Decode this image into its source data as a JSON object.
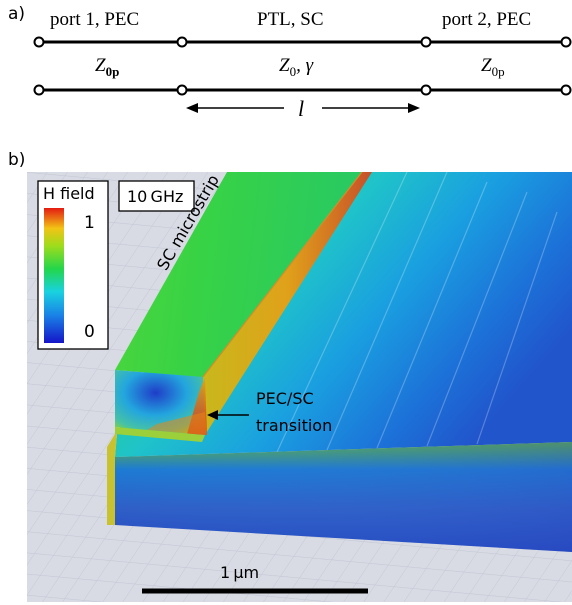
{
  "panel_a": {
    "label": "a)",
    "top_labels": [
      "port 1, PEC",
      "PTL, SC",
      "port 2, PEC"
    ],
    "impedances": {
      "left": {
        "symbol": "Z",
        "sub": "0p"
      },
      "middle": {
        "symbol": "Z",
        "sub": "0",
        "extra": ", γ"
      },
      "right": {
        "symbol": "Z",
        "sub": "0p"
      }
    },
    "length_label": "l"
  },
  "panel_b": {
    "label": "b)",
    "legend": {
      "title": "H field",
      "max": "1",
      "min": "0"
    },
    "frequency": "10 GHz",
    "strip_label": "SC microstrip",
    "transition_label_line1": "PEC/SC",
    "transition_label_line2": "transition",
    "scalebar": "1 μm"
  },
  "colors": {
    "line": "#000000",
    "floor": "#d8dbe4",
    "grid": "#c3c7d4"
  }
}
